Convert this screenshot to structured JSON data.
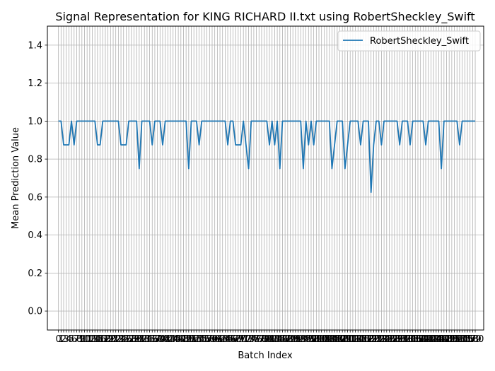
{
  "chart_data": {
    "type": "line",
    "title": "Signal Representation for KING RICHARD II.txt using RobertSheckley_Swift",
    "xlabel": "Batch Index",
    "ylabel": "Mean Prediction Value",
    "xlim": [
      -4.25,
      163.25
    ],
    "ylim": [
      -0.1,
      1.5
    ],
    "yticks": [
      0.0,
      0.2,
      0.4,
      0.6,
      0.8,
      1.0,
      1.2,
      1.4
    ],
    "xtick_step": 1,
    "grid": true,
    "legend_position": "top-right",
    "x_start": 0,
    "series": [
      {
        "name": "RobertSheckley_Swift",
        "color": "#1f77b4",
        "values": [
          1,
          1,
          0.875,
          0.875,
          0.875,
          1,
          0.875,
          1,
          1,
          1,
          1,
          1,
          1,
          1,
          1,
          0.875,
          0.875,
          1,
          1,
          1,
          1,
          1,
          1,
          1,
          0.875,
          0.875,
          0.875,
          1,
          1,
          1,
          1,
          0.75,
          1,
          1,
          1,
          1,
          0.875,
          1,
          1,
          1,
          0.875,
          1,
          1,
          1,
          1,
          1,
          1,
          1,
          1,
          1,
          0.75,
          1,
          1,
          1,
          0.875,
          1,
          1,
          1,
          1,
          1,
          1,
          1,
          1,
          1,
          1,
          0.875,
          1,
          1,
          0.875,
          0.875,
          0.875,
          1,
          0.875,
          0.75,
          1,
          1,
          1,
          1,
          1,
          1,
          1,
          0.875,
          1,
          0.875,
          1,
          0.75,
          1,
          1,
          1,
          1,
          1,
          1,
          1,
          1,
          0.75,
          1,
          0.875,
          1,
          0.875,
          1,
          1,
          1,
          1,
          1,
          1,
          0.75,
          0.875,
          1,
          1,
          1,
          0.75,
          0.875,
          1,
          1,
          1,
          1,
          0.875,
          1,
          1,
          1,
          0.625,
          0.875,
          1,
          1,
          0.875,
          1,
          1,
          1,
          1,
          1,
          1,
          0.875,
          1,
          1,
          1,
          0.875,
          1,
          1,
          1,
          1,
          1,
          0.875,
          1,
          1,
          1,
          1,
          1,
          0.75,
          1,
          1,
          1,
          1,
          1,
          1,
          0.875,
          1,
          1,
          1,
          1,
          1,
          1
        ]
      }
    ]
  }
}
